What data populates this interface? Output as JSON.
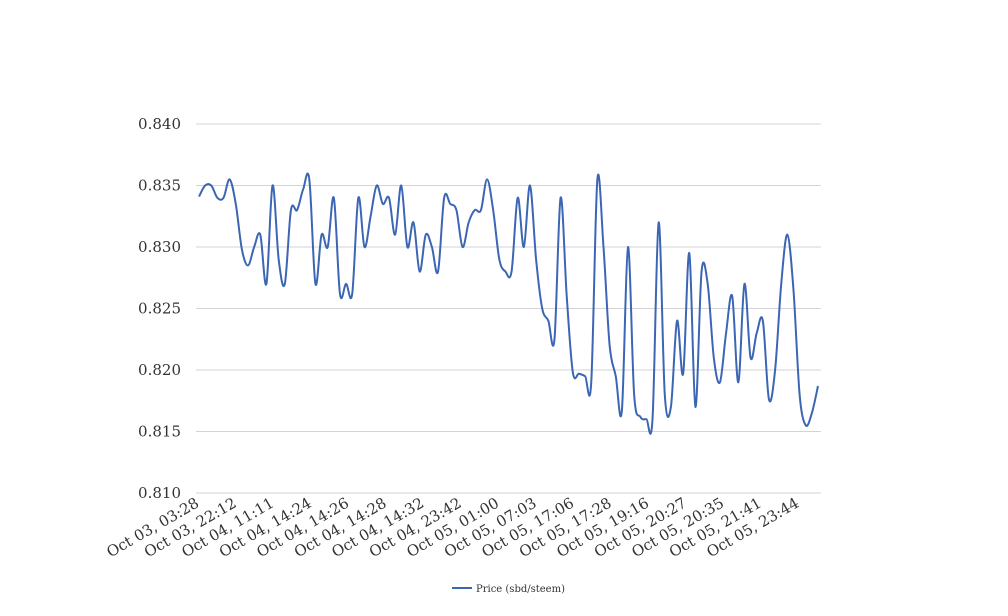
{
  "colors": {
    "series": "#3c66b4",
    "grid": "#d3d3d3",
    "text": "#333333",
    "background": "#ffffff"
  },
  "chart_data": {
    "type": "line",
    "title": "",
    "xlabel": "",
    "ylabel": "",
    "ylim": [
      0.81,
      0.84
    ],
    "yticks": [
      "0.810",
      "0.815",
      "0.820",
      "0.825",
      "0.830",
      "0.835",
      "0.840"
    ],
    "x_tick_labels": [
      "Oct 03, 03:28",
      "Oct 03, 22:12",
      "Oct 04, 11:11",
      "Oct 04, 14:24",
      "Oct 04, 14:26",
      "Oct 04, 14:28",
      "Oct 04, 14:32",
      "Oct 04, 23:42",
      "Oct 05, 01:00",
      "Oct 05, 07:03",
      "Oct 05, 17:06",
      "Oct 05, 17:28",
      "Oct 05, 19:16",
      "Oct 05, 20:27",
      "Oct 05, 20:35",
      "Oct 05, 21:41",
      "Oct 05, 23:44"
    ],
    "grid": "horizontal",
    "legend_position": "bottom-center",
    "series": [
      {
        "name": "Price (sbd/steem)",
        "values": [
          0.8341,
          0.835,
          0.835,
          0.834,
          0.834,
          0.8355,
          0.8335,
          0.8298,
          0.8285,
          0.83,
          0.831,
          0.827,
          0.835,
          0.829,
          0.827,
          0.833,
          0.833,
          0.8347,
          0.8355,
          0.827,
          0.831,
          0.83,
          0.834,
          0.8262,
          0.827,
          0.8262,
          0.834,
          0.83,
          0.8325,
          0.835,
          0.8335,
          0.834,
          0.831,
          0.835,
          0.83,
          0.832,
          0.828,
          0.831,
          0.83,
          0.828,
          0.834,
          0.8335,
          0.833,
          0.83,
          0.832,
          0.833,
          0.833,
          0.8355,
          0.833,
          0.829,
          0.828,
          0.828,
          0.834,
          0.83,
          0.835,
          0.829,
          0.825,
          0.824,
          0.8225,
          0.834,
          0.826,
          0.8198,
          0.8197,
          0.8195,
          0.819,
          0.8355,
          0.83,
          0.822,
          0.8195,
          0.8167,
          0.83,
          0.818,
          0.8162,
          0.816,
          0.816,
          0.832,
          0.818,
          0.817,
          0.824,
          0.8197,
          0.8295,
          0.817,
          0.828,
          0.827,
          0.821,
          0.819,
          0.823,
          0.826,
          0.819,
          0.827,
          0.821,
          0.823,
          0.824,
          0.8176,
          0.82,
          0.827,
          0.831,
          0.8265,
          0.818,
          0.8155,
          0.8165,
          0.8187
        ]
      }
    ]
  }
}
